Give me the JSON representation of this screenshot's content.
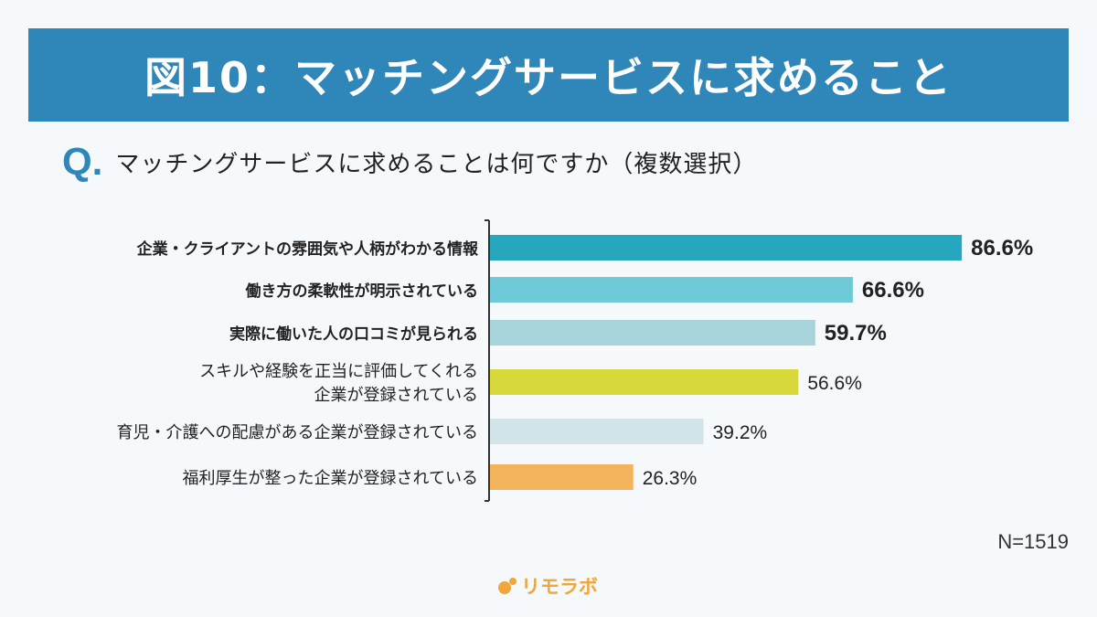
{
  "header": {
    "title": "図10：マッチングサービスに求めること"
  },
  "question": {
    "mark": "Q.",
    "text": "マッチングサービスに求めることは何ですか（複数選択）"
  },
  "chart_data": {
    "type": "bar",
    "orientation": "horizontal",
    "categories": [
      [
        "企業・クライアントの雰囲気や人柄がわかる情報"
      ],
      [
        "働き方の柔軟性が明示されている"
      ],
      [
        "実際に働いた人の口コミが見られる"
      ],
      [
        "スキルや経験を正当に評価してくれる",
        "企業が登録されている"
      ],
      [
        "育児・介護への配慮がある企業が登録されている"
      ],
      [
        "福利厚生が整った企業が登録されている"
      ]
    ],
    "values": [
      86.6,
      66.6,
      59.7,
      56.6,
      39.2,
      26.3
    ],
    "value_labels": [
      "86.6%",
      "66.6%",
      "59.7%",
      "56.6%",
      "39.2%",
      "26.3%"
    ],
    "emphasized": [
      true,
      true,
      true,
      false,
      false,
      false
    ],
    "colors": [
      "#27a7bd",
      "#6fcad8",
      "#a8d5dc",
      "#d7d93a",
      "#d3e4e8",
      "#f2b35c"
    ],
    "xlim": [
      0,
      100
    ],
    "grid": false
  },
  "footer": {
    "n_label": "N=1519",
    "logo_text": "リモラボ",
    "logo_color": "#f0a63a"
  }
}
